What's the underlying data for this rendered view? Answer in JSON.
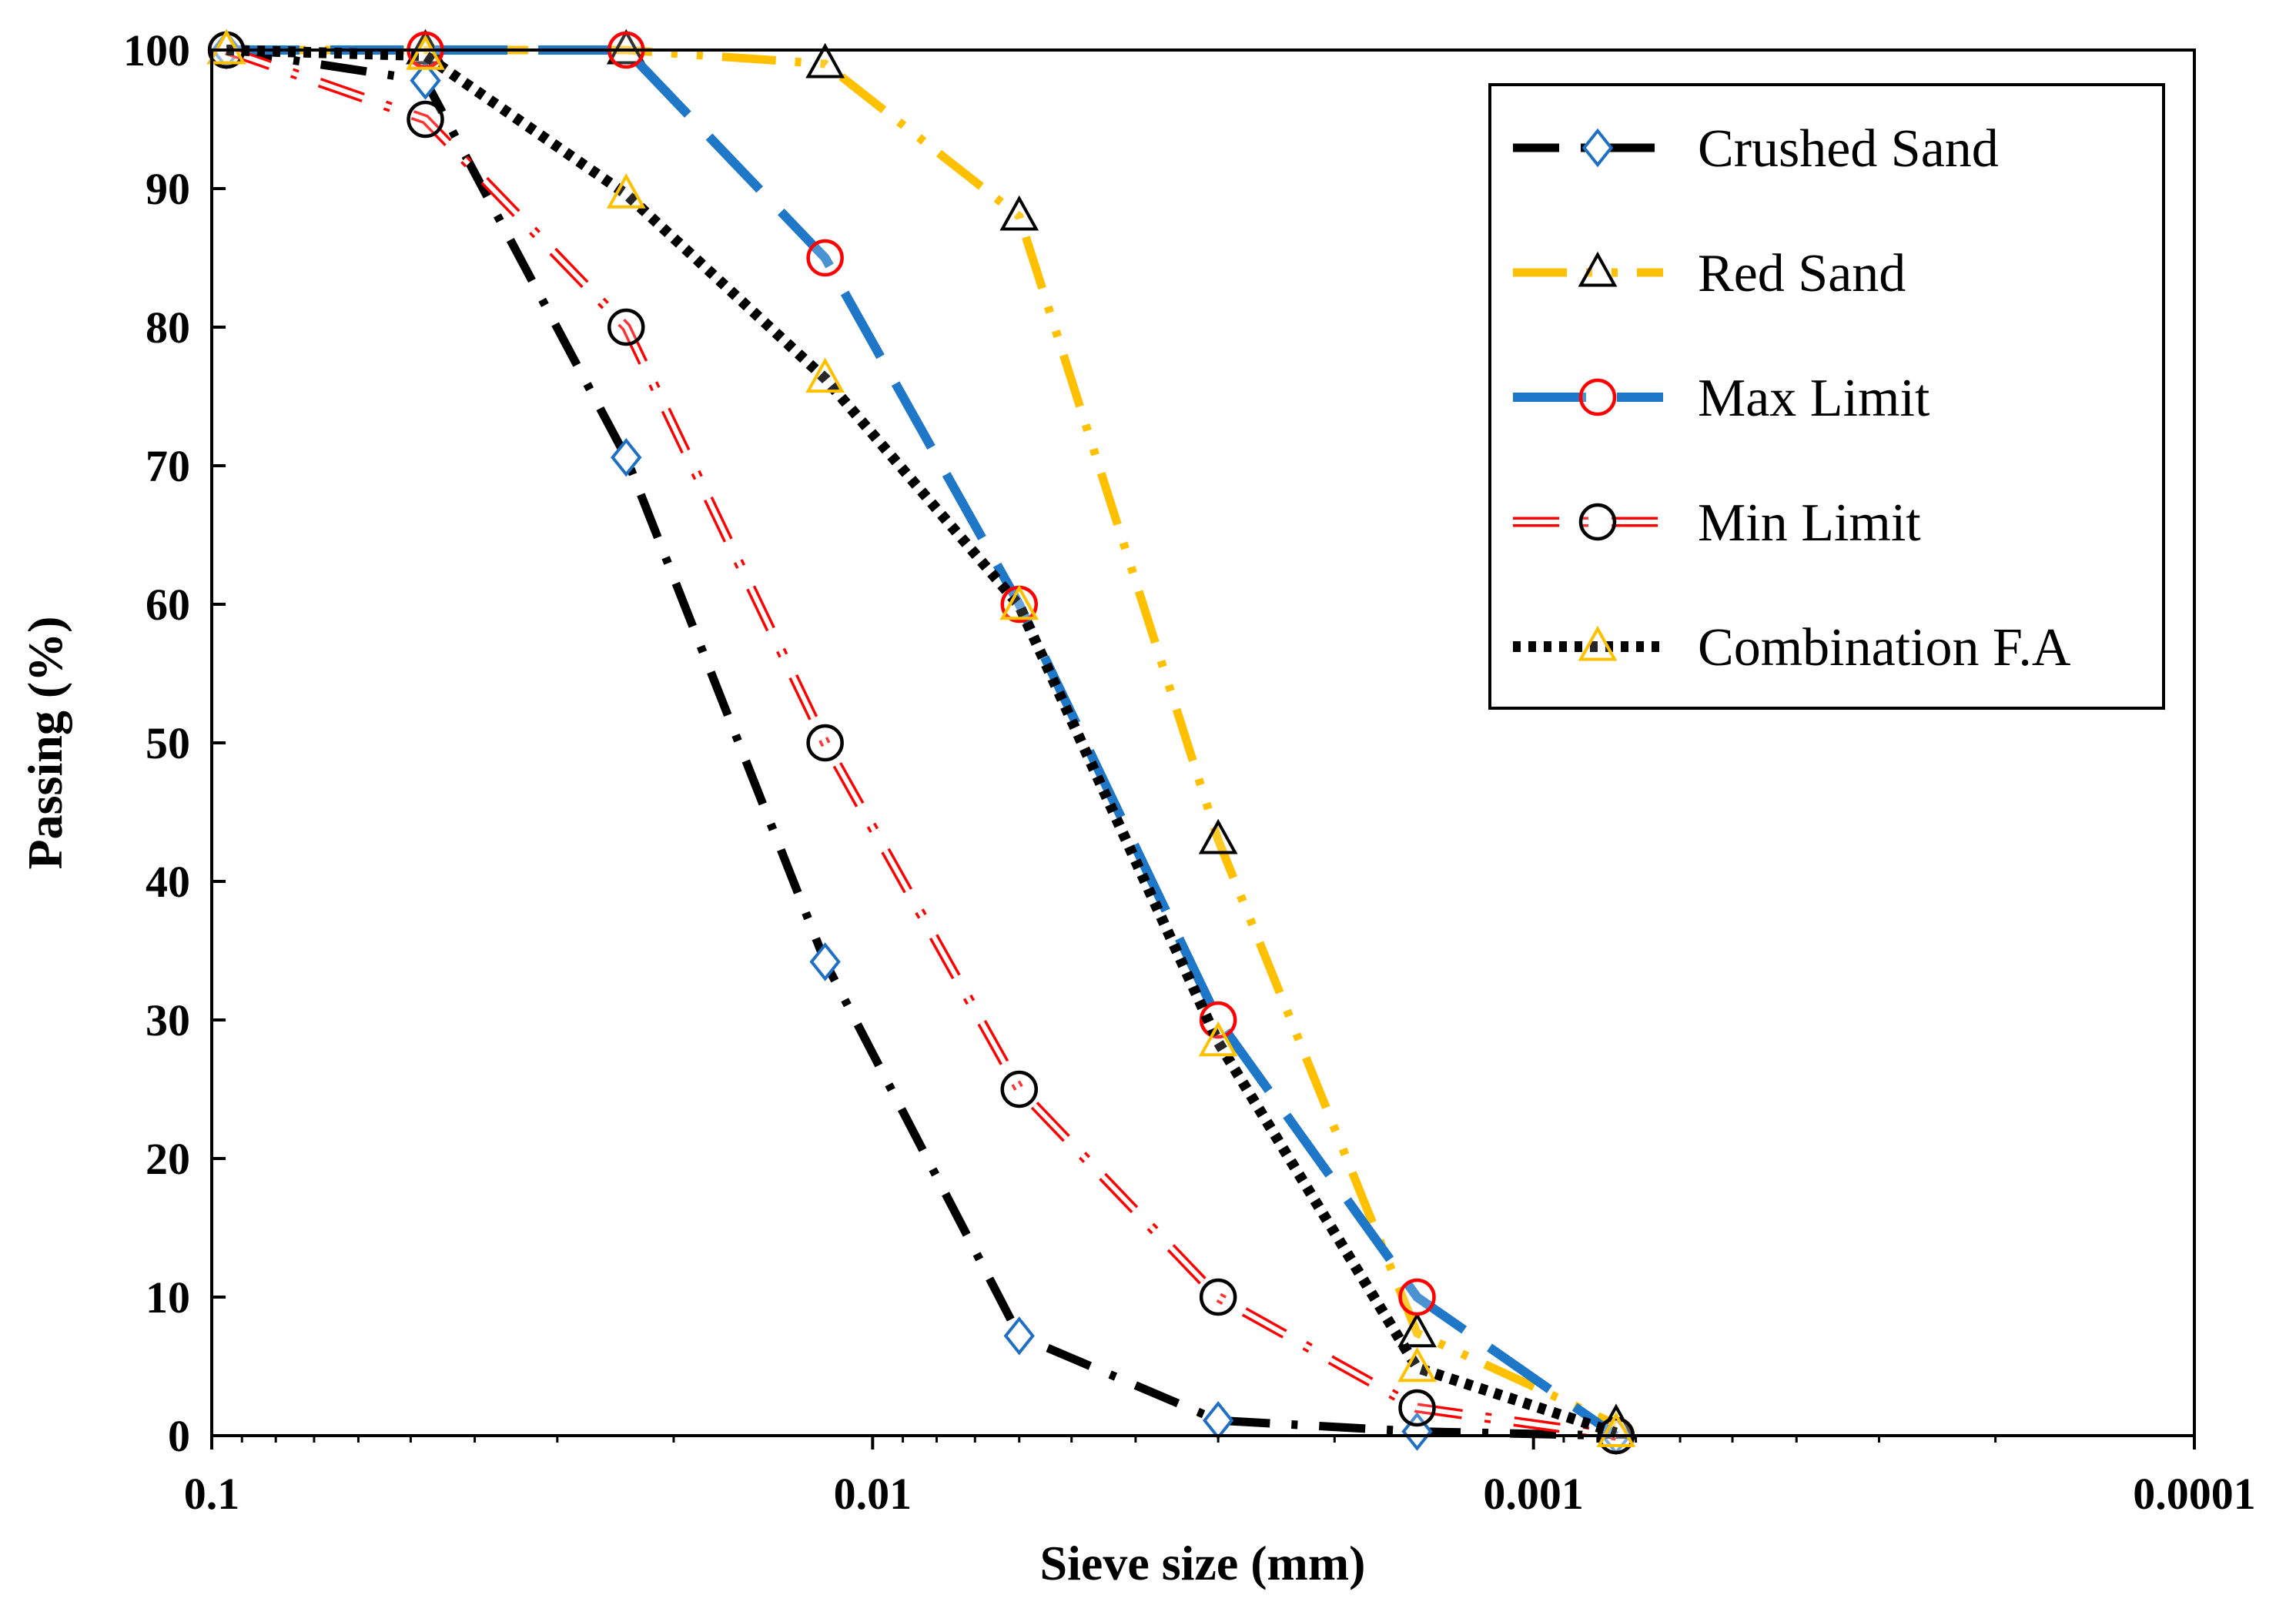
{
  "chart_data": {
    "type": "line",
    "xlabel": "Sieve size (mm)",
    "ylabel": "Passing (%)",
    "x_scale": "log",
    "x_reversed": true,
    "xlim": [
      0.1,
      0.0001
    ],
    "ylim": [
      0,
      100
    ],
    "x_ticks": [
      0.1,
      0.01,
      0.001,
      0.0001
    ],
    "x_tick_labels": [
      "0.1",
      "0.01",
      "0.001",
      "0.0001"
    ],
    "y_ticks": [
      0,
      10,
      20,
      30,
      40,
      50,
      60,
      70,
      80,
      90,
      100
    ],
    "y_tick_labels": [
      "0",
      "10",
      "20",
      "30",
      "40",
      "50",
      "60",
      "70",
      "80",
      "90",
      "100"
    ],
    "grid": false,
    "legend_position": "top-right",
    "x": [
      0.095,
      0.0475,
      0.0236,
      0.0118,
      0.006,
      0.003,
      0.0015,
      0.00075
    ],
    "series": [
      {
        "name": "Crushed Sand",
        "values": [
          100,
          97.8,
          70.6,
          34.2,
          7.2,
          1.1,
          0.3,
          0
        ],
        "color": "#000000",
        "marker": "diamond",
        "marker_color": "#1f6fc5",
        "dash": "dash-dot"
      },
      {
        "name": "Red Sand",
        "values": [
          100,
          100,
          100,
          99,
          88,
          43,
          7.4,
          0.8
        ],
        "color": "#ffc000",
        "marker": "triangle",
        "marker_color": "#000000",
        "dash": "dash-dot-dot"
      },
      {
        "name": "Max Limit",
        "values": [
          100,
          100,
          100,
          85,
          60,
          30,
          10,
          0
        ],
        "color": "#1f77c8",
        "marker": "circle",
        "marker_color": "#ff0000",
        "dash": "long-dash"
      },
      {
        "name": "Min Limit",
        "values": [
          100,
          95,
          80,
          50,
          25,
          10,
          2,
          0
        ],
        "color": "#ff0000",
        "marker": "circle",
        "marker_color": "#000000",
        "dash": "outline-dash-dot"
      },
      {
        "name": "Combination F.A",
        "values": [
          100,
          99.6,
          89.6,
          76.3,
          59.9,
          28.4,
          4.9,
          0.2
        ],
        "color": "#000000",
        "marker": "triangle",
        "marker_color": "#ffc000",
        "dash": "dotted"
      }
    ]
  }
}
